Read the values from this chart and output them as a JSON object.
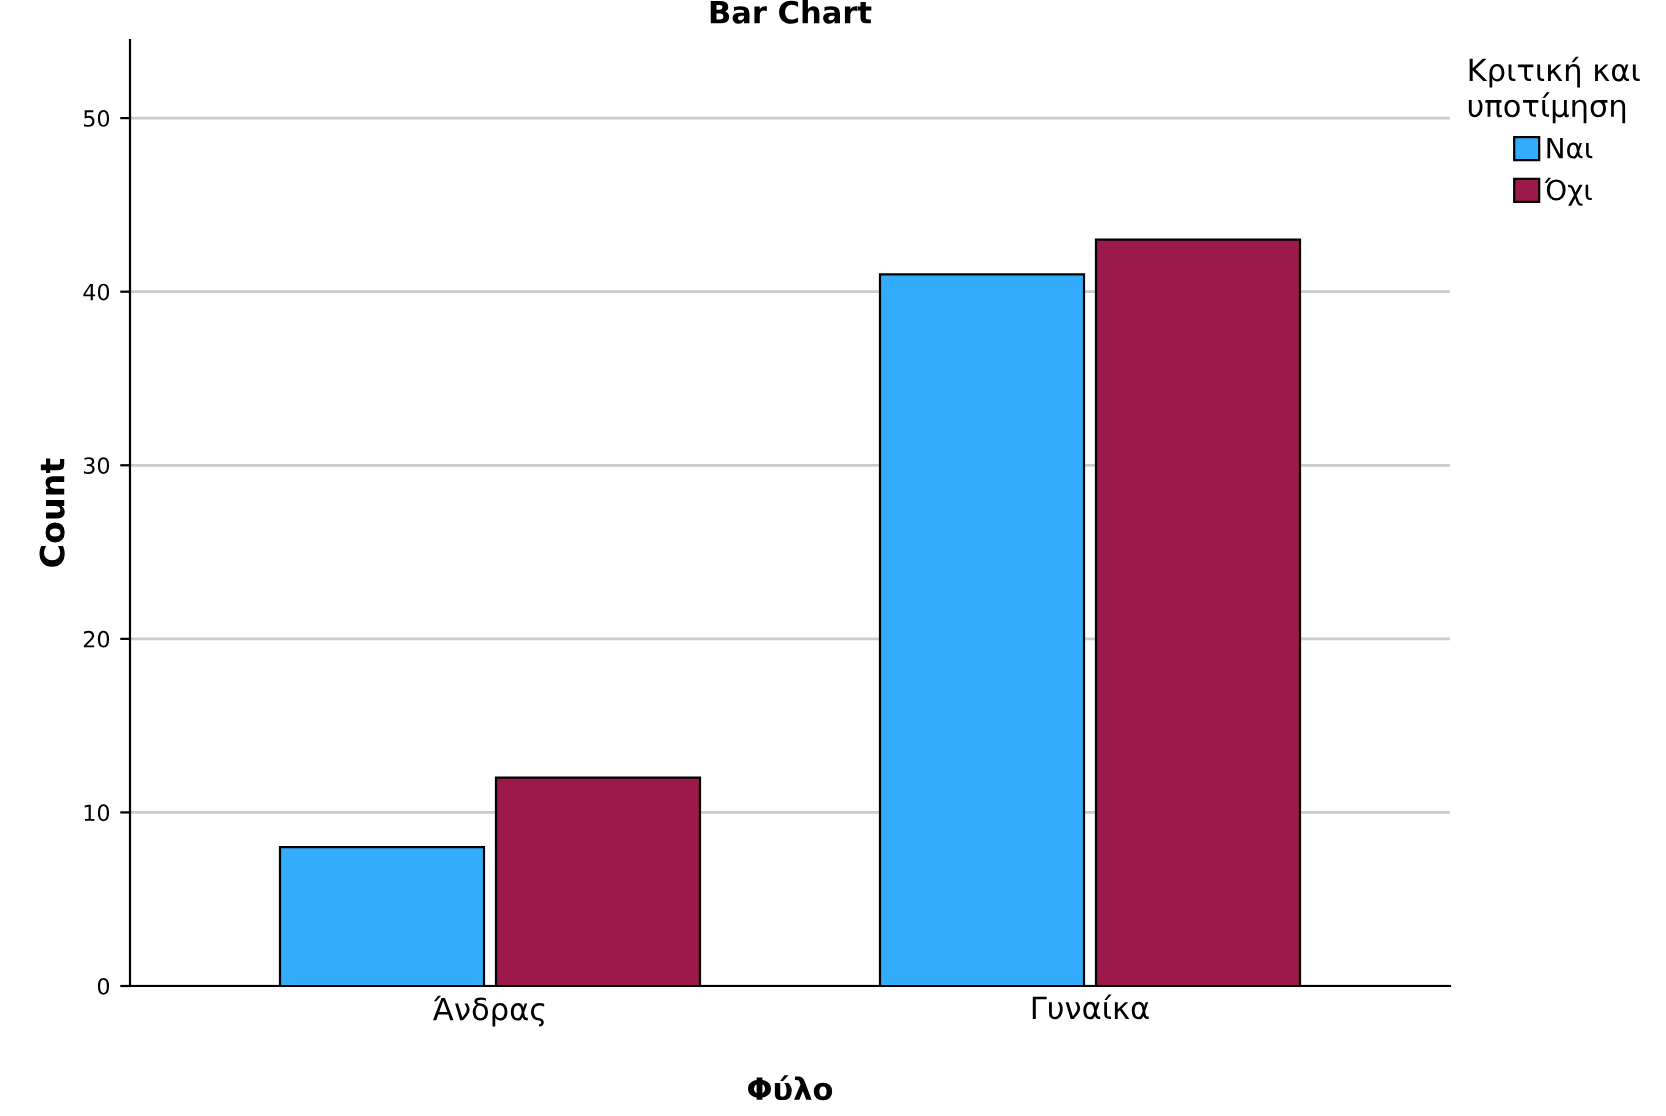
{
  "chart_data": {
    "type": "bar",
    "title": "Bar Chart",
    "xlabel": "Φύλο",
    "ylabel": "Count",
    "categories": [
      "Άνδρας",
      "Γυναίκα"
    ],
    "series": [
      {
        "name": "Ναι",
        "color": "#33adfb",
        "values": [
          8,
          41
        ]
      },
      {
        "name": "Όχι",
        "color": "#9c1a4b",
        "values": [
          12,
          43
        ]
      }
    ],
    "legend_title": "Κριτική και\nυποτίμηση",
    "legend": "top right",
    "ylim": [
      0,
      54.5
    ],
    "yticks": [
      0,
      10,
      20,
      30,
      40,
      50
    ],
    "grid": "y"
  }
}
